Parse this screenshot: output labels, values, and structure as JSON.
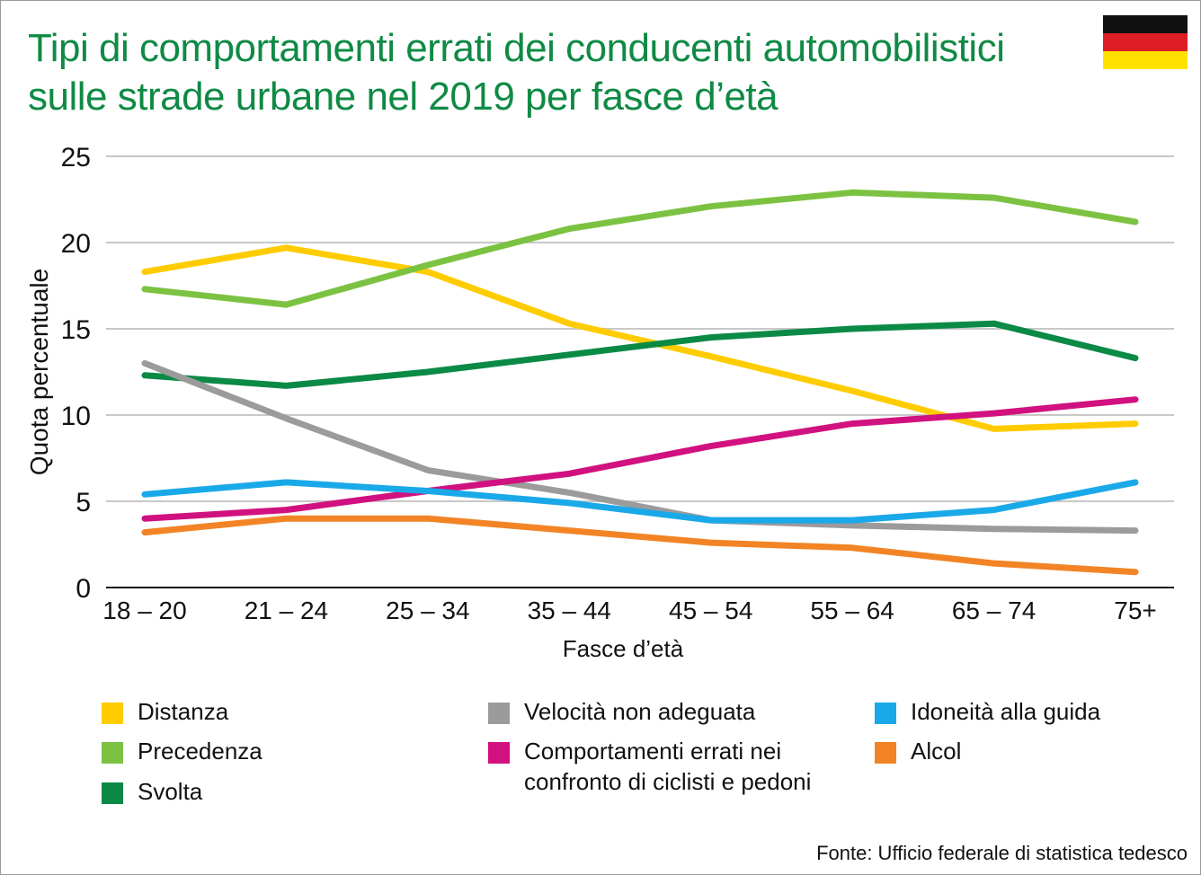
{
  "header": {
    "title_line1": "Tipi di comportamenti errati dei conducenti automobilistici",
    "title_line2": "sulle strade urbane nel 2019 per fasce d’età"
  },
  "flag": {
    "name": "germany-flag-icon",
    "colors": [
      "#111111",
      "#dd1e25",
      "#ffe100"
    ]
  },
  "source": "Fonte: Ufficio federale di statistica tedesco",
  "chart_data": {
    "type": "line",
    "title": "Tipi di comportamenti errati dei conducenti automobilistici sulle strade urbane nel 2019 per fasce d’età",
    "xlabel": "Fasce d’età",
    "ylabel": "Quota percentuale",
    "categories": [
      "18 – 20",
      "21 – 24",
      "25 – 34",
      "35 – 44",
      "45 – 54",
      "55 – 64",
      "65 – 74",
      "75+"
    ],
    "ylim": [
      0,
      25
    ],
    "yticks": [
      0,
      5,
      10,
      15,
      20,
      25
    ],
    "grid": "horizontal",
    "legend_position": "bottom",
    "series": [
      {
        "name": "Distanza",
        "color": "#ffcc00",
        "values": [
          18.3,
          19.7,
          18.3,
          15.3,
          13.4,
          11.4,
          9.2,
          9.5
        ]
      },
      {
        "name": "Precedenza",
        "color": "#7cc242",
        "values": [
          17.3,
          16.4,
          18.7,
          20.8,
          22.1,
          22.9,
          22.6,
          21.2
        ]
      },
      {
        "name": "Svolta",
        "color": "#0b8a46",
        "values": [
          12.3,
          11.7,
          12.5,
          13.5,
          14.5,
          15.0,
          15.3,
          13.3
        ]
      },
      {
        "name": "Velocità non adeguata",
        "color": "#9b9b9b",
        "values": [
          13.0,
          9.8,
          6.8,
          5.5,
          3.9,
          3.6,
          3.4,
          3.3
        ]
      },
      {
        "name": "Comportamenti errati nei confronto di ciclisti e pedoni",
        "color": "#d1117f",
        "values": [
          4.0,
          4.5,
          5.6,
          6.6,
          8.2,
          9.5,
          10.1,
          10.9
        ]
      },
      {
        "name": "Idoneità alla guida",
        "color": "#1aa9e8",
        "values": [
          5.4,
          6.1,
          5.6,
          4.9,
          3.9,
          3.9,
          4.5,
          6.1
        ]
      },
      {
        "name": "Alcol",
        "color": "#f28425",
        "values": [
          3.2,
          4.0,
          4.0,
          3.3,
          2.6,
          2.3,
          1.4,
          0.9
        ]
      }
    ]
  },
  "legend": {
    "items": [
      {
        "label": "Distanza",
        "color": "#ffcc00"
      },
      {
        "label": "Precedenza",
        "color": "#7cc242"
      },
      {
        "label": "Svolta",
        "color": "#0b8a46"
      },
      {
        "label": "Velocità non adeguata",
        "color": "#9b9b9b"
      },
      {
        "label_line1": "Comportamenti errati nei",
        "label_line2": "confronto di ciclisti e pedoni",
        "color": "#d1117f"
      },
      {
        "label": "Idoneità alla guida",
        "color": "#1aa9e8"
      },
      {
        "label": "Alcol",
        "color": "#f28425"
      }
    ]
  }
}
